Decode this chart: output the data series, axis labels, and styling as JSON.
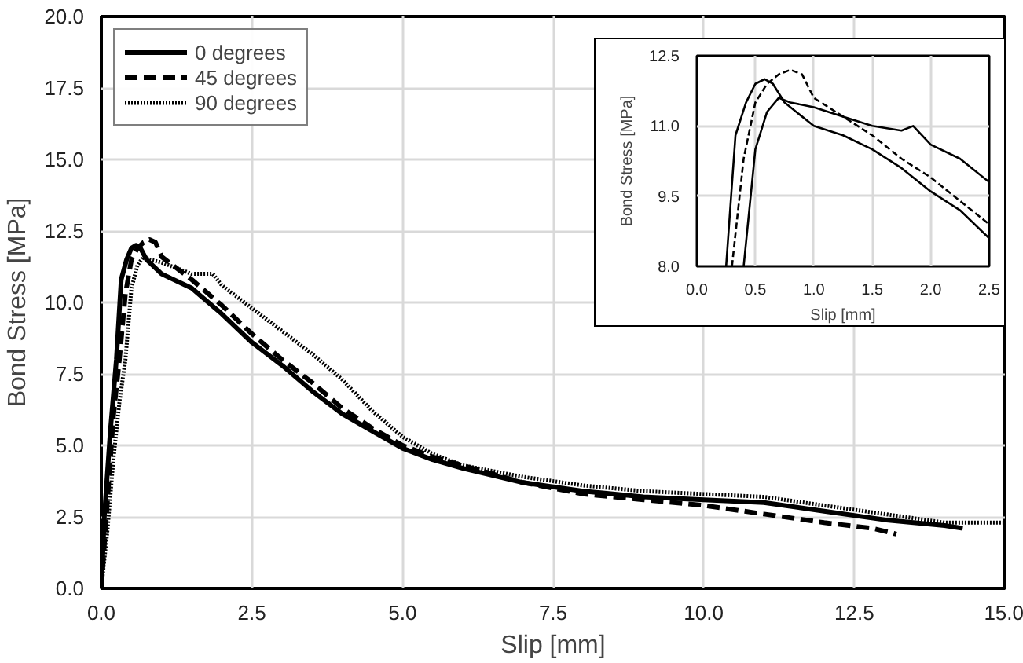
{
  "chart_data": [
    {
      "type": "line",
      "xlabel": "Slip [mm]",
      "ylabel": "Bond Stress [MPa]",
      "xlim": [
        0,
        15
      ],
      "ylim": [
        0,
        20
      ],
      "xticks": [
        {
          "value": 0,
          "label": "0.0"
        },
        {
          "value": 2.5,
          "label": "2.5"
        },
        {
          "value": 5,
          "label": "5.0"
        },
        {
          "value": 7.5,
          "label": "7.5"
        },
        {
          "value": 10,
          "label": "10.0"
        },
        {
          "value": 12.5,
          "label": "12.5"
        },
        {
          "value": 15,
          "label": "15.0"
        }
      ],
      "yticks": [
        {
          "value": 0,
          "label": "0.0"
        },
        {
          "value": 2.5,
          "label": "2.5"
        },
        {
          "value": 5,
          "label": "5.0"
        },
        {
          "value": 7.5,
          "label": "7.5"
        },
        {
          "value": 10,
          "label": "10.0"
        },
        {
          "value": 12.5,
          "label": "12.5"
        },
        {
          "value": 15,
          "label": "15.0"
        },
        {
          "value": 17.5,
          "label": "17.5"
        },
        {
          "value": 20,
          "label": "20.0"
        }
      ],
      "grid": true,
      "legend": "top left",
      "series": [
        {
          "name": "0 degrees",
          "color": "#000000",
          "line_style": "solid",
          "x": [
            0,
            0.05,
            0.15,
            0.25,
            0.33,
            0.42,
            0.5,
            0.58,
            0.65,
            0.75,
            1.0,
            1.5,
            2.0,
            2.5,
            3.0,
            3.5,
            4.0,
            4.5,
            5.0,
            5.5,
            6.0,
            7.0,
            8.0,
            9.0,
            10.0,
            11.0,
            12.0,
            13.0,
            14.0,
            14.3
          ],
          "values": [
            0,
            2.5,
            5.5,
            8.0,
            10.8,
            11.5,
            11.9,
            12.0,
            11.9,
            11.5,
            11.0,
            10.5,
            9.6,
            8.6,
            7.8,
            6.9,
            6.1,
            5.5,
            4.9,
            4.5,
            4.2,
            3.7,
            3.4,
            3.2,
            3.1,
            3.0,
            2.7,
            2.4,
            2.2,
            2.1
          ]
        },
        {
          "name": "45 degrees",
          "color": "#000000",
          "line_style": "dashed",
          "x": [
            0,
            0.1,
            0.2,
            0.3,
            0.4,
            0.5,
            0.6,
            0.7,
            0.8,
            0.9,
            1.0,
            1.5,
            2.0,
            2.5,
            3.0,
            3.5,
            4.0,
            4.5,
            5.0,
            5.5,
            6.0,
            7.0,
            8.0,
            9.0,
            10.0,
            11.0,
            12.0,
            12.8,
            13.2
          ],
          "values": [
            0,
            3.0,
            6.0,
            8.0,
            10.3,
            11.5,
            11.9,
            12.1,
            12.2,
            12.1,
            11.6,
            10.8,
            9.9,
            8.9,
            8.0,
            7.2,
            6.3,
            5.6,
            5.0,
            4.6,
            4.3,
            3.7,
            3.3,
            3.1,
            2.9,
            2.6,
            2.3,
            2.1,
            1.9
          ]
        },
        {
          "name": "90 degrees",
          "color": "#000000",
          "line_style": "dotted",
          "x": [
            0,
            0.1,
            0.2,
            0.3,
            0.4,
            0.5,
            0.6,
            0.7,
            0.8,
            1.0,
            1.5,
            1.85,
            2.0,
            2.5,
            3.0,
            3.5,
            4.0,
            4.5,
            5.0,
            5.5,
            6.0,
            7.0,
            8.0,
            9.0,
            10.0,
            11.0,
            12.0,
            13.0,
            14.0,
            15.0
          ],
          "values": [
            0,
            2.0,
            4.5,
            6.5,
            8.0,
            10.5,
            11.3,
            11.6,
            11.5,
            11.4,
            11.0,
            11.0,
            10.6,
            9.8,
            9.0,
            8.2,
            7.3,
            6.2,
            5.3,
            4.7,
            4.3,
            3.9,
            3.6,
            3.4,
            3.3,
            3.2,
            2.9,
            2.6,
            2.3,
            2.3
          ]
        }
      ]
    },
    {
      "type": "line",
      "xlabel": "Slip [mm]",
      "ylabel": "Bond Stress [MPa]",
      "xlim": [
        0,
        2.5
      ],
      "ylim": [
        8,
        12.5
      ],
      "xticks": [
        {
          "value": 0,
          "label": "0.0"
        },
        {
          "value": 0.5,
          "label": "0.5"
        },
        {
          "value": 1,
          "label": "1.0"
        },
        {
          "value": 1.5,
          "label": "1.5"
        },
        {
          "value": 2,
          "label": "2.0"
        },
        {
          "value": 2.5,
          "label": "2.5"
        }
      ],
      "yticks": [
        {
          "value": 8,
          "label": "8.0"
        },
        {
          "value": 9.5,
          "label": "9.5"
        },
        {
          "value": 11,
          "label": "11.0"
        },
        {
          "value": 12.5,
          "label": "12.5"
        }
      ],
      "grid": true,
      "series": [
        {
          "color": "#000000",
          "line_style": "solid",
          "x": [
            0.25,
            0.33,
            0.42,
            0.5,
            0.58,
            0.65,
            0.75,
            1.0,
            1.25,
            1.5,
            1.75,
            2.0,
            2.25,
            2.5
          ],
          "values": [
            8.0,
            10.8,
            11.5,
            11.9,
            12.0,
            11.9,
            11.5,
            11.0,
            10.8,
            10.5,
            10.1,
            9.6,
            9.2,
            8.6
          ]
        },
        {
          "color": "#000000",
          "line_style": "dashed",
          "x": [
            0.3,
            0.4,
            0.5,
            0.6,
            0.7,
            0.8,
            0.9,
            1.0,
            1.25,
            1.5,
            1.75,
            2.0,
            2.25,
            2.5
          ],
          "values": [
            8.0,
            10.3,
            11.5,
            11.9,
            12.1,
            12.2,
            12.1,
            11.6,
            11.2,
            10.8,
            10.3,
            9.9,
            9.4,
            8.9
          ]
        },
        {
          "color": "#000000",
          "line_style": "solid",
          "x": [
            0.4,
            0.5,
            0.6,
            0.7,
            0.8,
            1.0,
            1.25,
            1.5,
            1.75,
            1.85,
            2.0,
            2.25,
            2.5
          ],
          "values": [
            8.0,
            10.5,
            11.3,
            11.6,
            11.5,
            11.4,
            11.2,
            11.0,
            10.9,
            11.0,
            10.6,
            10.3,
            9.8
          ]
        }
      ]
    }
  ]
}
